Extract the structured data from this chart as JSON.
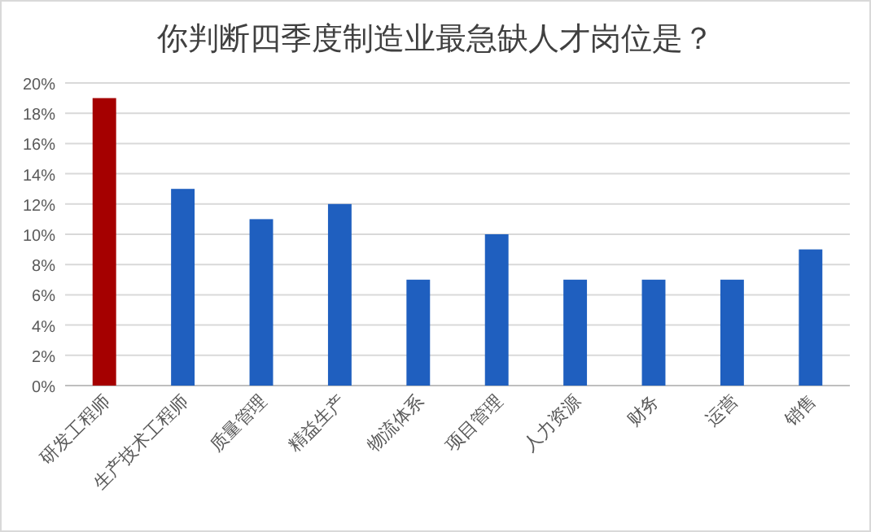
{
  "chart_data": {
    "type": "bar",
    "title": "你判断四季度制造业最急缺人才岗位是？",
    "categories": [
      "研发工程师",
      "生产技术工程师",
      "质量管理",
      "精益生产",
      "物流体系",
      "项目管理",
      "人力资源",
      "财务",
      "运营",
      "销售"
    ],
    "values": [
      19,
      13,
      11,
      12,
      7,
      10,
      7,
      7,
      7,
      9
    ],
    "colors": [
      "#a50000",
      "#1f5fbf",
      "#1f5fbf",
      "#1f5fbf",
      "#1f5fbf",
      "#1f5fbf",
      "#1f5fbf",
      "#1f5fbf",
      "#1f5fbf",
      "#1f5fbf"
    ],
    "ylim": [
      0,
      20
    ],
    "yticks": [
      {
        "value": 0,
        "label": "0%"
      },
      {
        "value": 2,
        "label": "2%"
      },
      {
        "value": 4,
        "label": "4%"
      },
      {
        "value": 6,
        "label": "6%"
      },
      {
        "value": 8,
        "label": "8%"
      },
      {
        "value": 10,
        "label": "10%"
      },
      {
        "value": 12,
        "label": "12%"
      },
      {
        "value": 14,
        "label": "14%"
      },
      {
        "value": 16,
        "label": "16%"
      },
      {
        "value": 18,
        "label": "18%"
      },
      {
        "value": 20,
        "label": "20%"
      }
    ],
    "grid": "y"
  }
}
